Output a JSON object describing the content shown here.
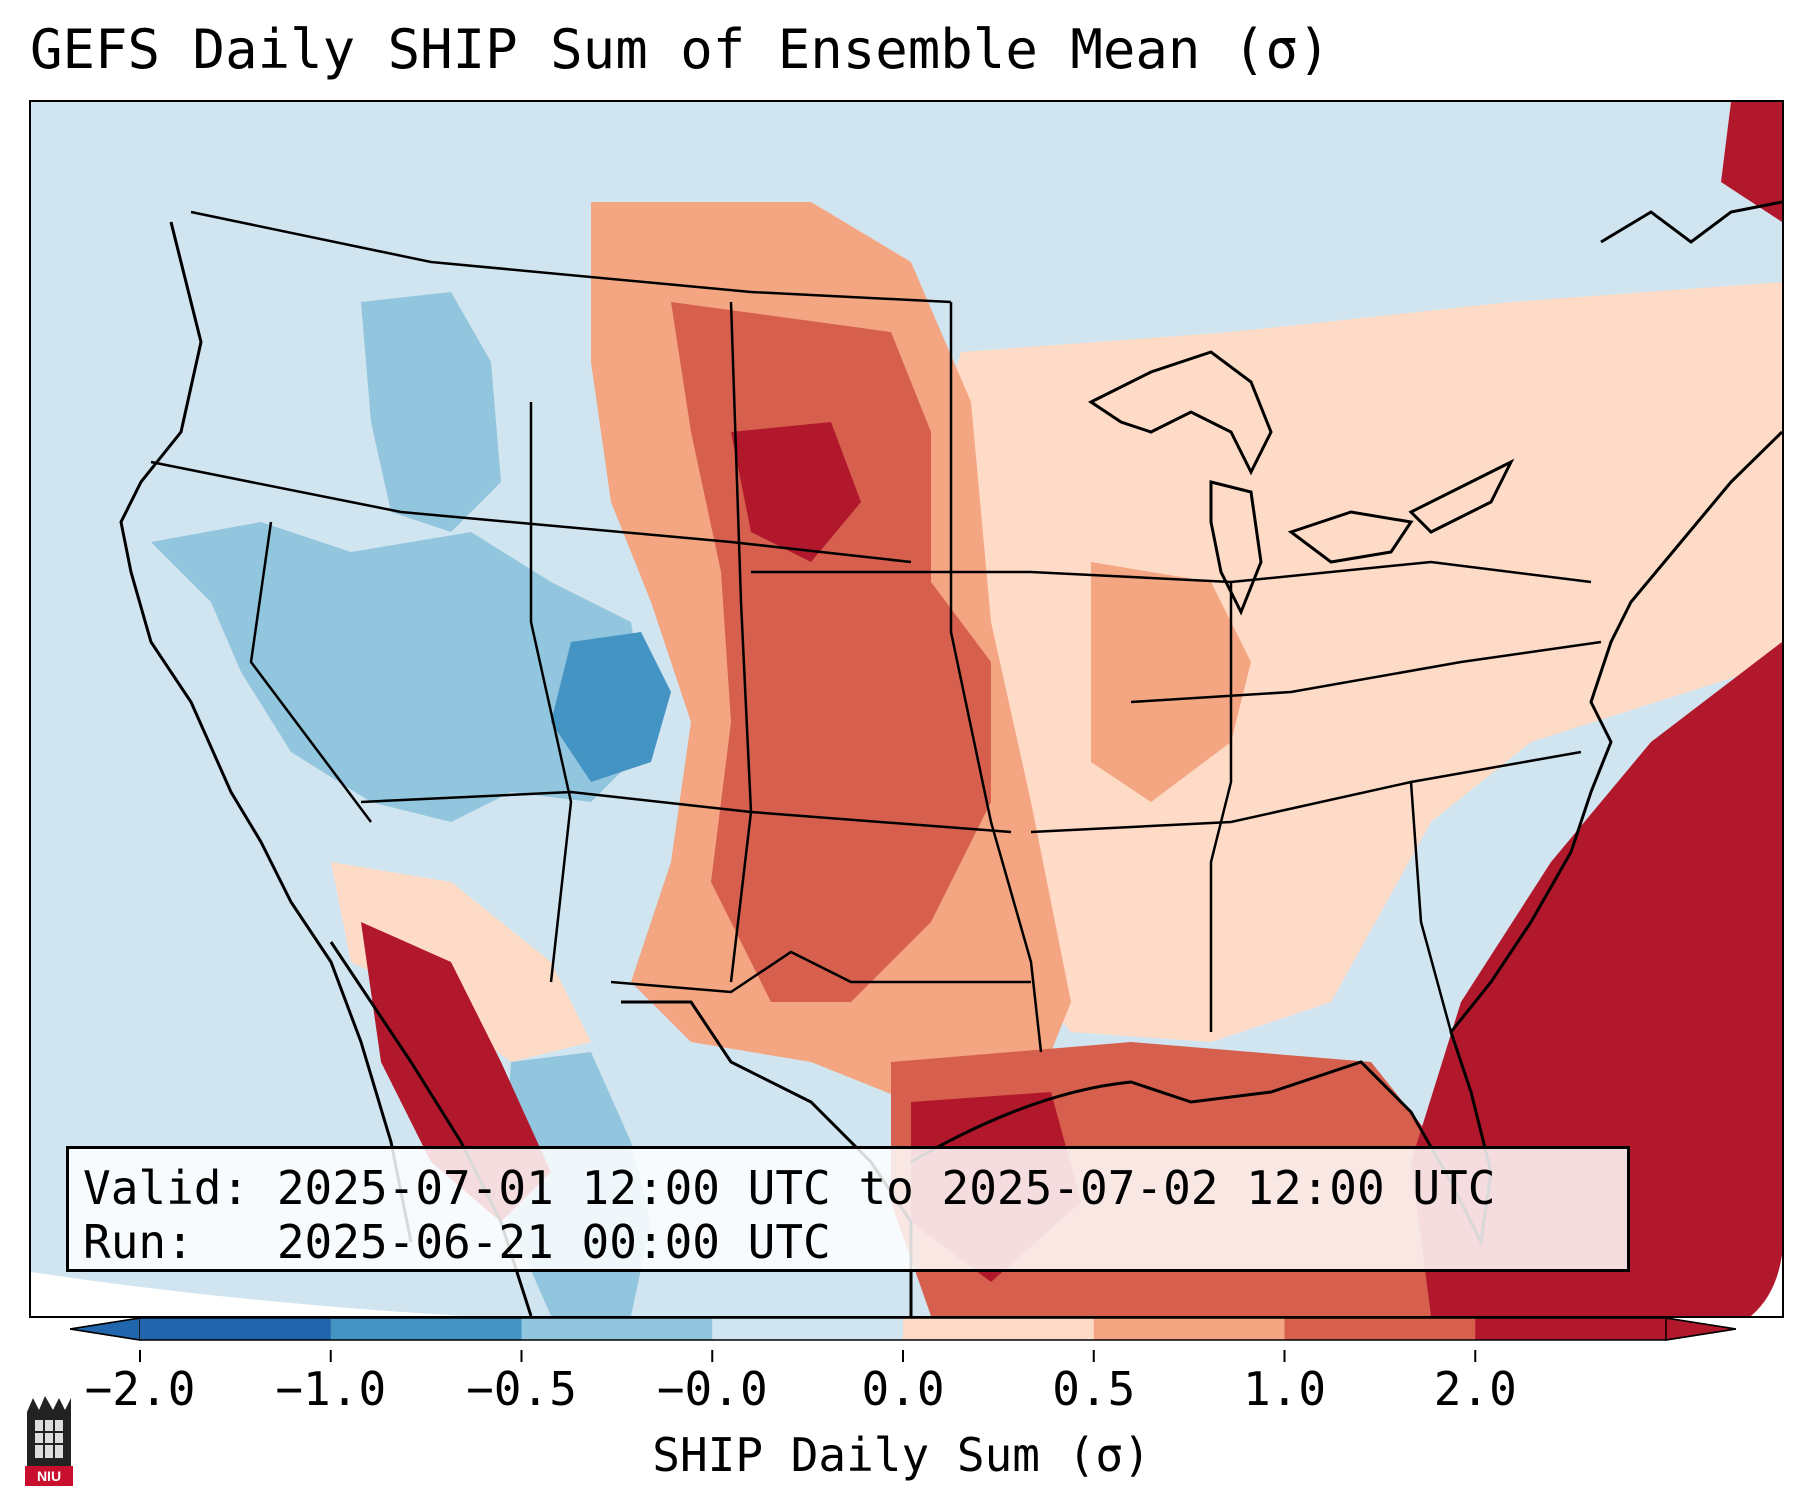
{
  "title": "GEFS Daily SHIP Sum of Ensemble Mean (σ)",
  "info": {
    "valid_line": "Valid: 2025-07-01 12:00 UTC to 2025-07-02 12:00 UTC",
    "run_line": "Run:   2025-06-21 00:00 UTC"
  },
  "colorbar": {
    "label": "SHIP Daily Sum (σ)",
    "ticks": [
      "−2.0",
      "−1.0",
      "−0.5",
      "−0.0",
      "0.0",
      "0.5",
      "1.0",
      "2.0"
    ],
    "colors": [
      "#2166ac",
      "#4393c3",
      "#92c5de",
      "#d1e5f0",
      "#fddbc7",
      "#f4a582",
      "#d6604d",
      "#b2182b"
    ],
    "extend": "both"
  },
  "logo": {
    "text": "NIU"
  }
}
